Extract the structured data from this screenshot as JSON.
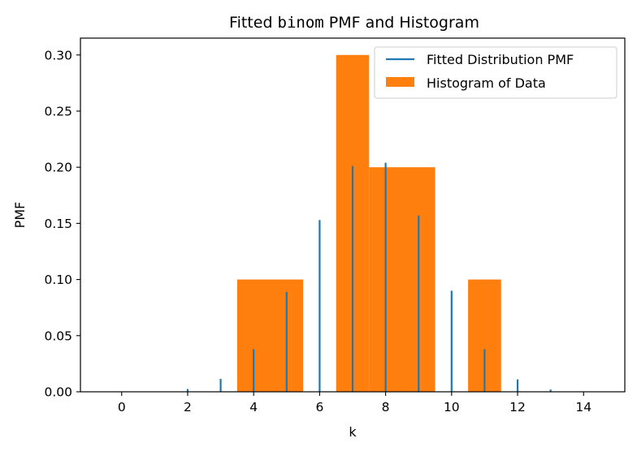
{
  "chart_data": {
    "type": "bar",
    "title_parts": [
      "Fitted ",
      "binom",
      " PMF and Histogram"
    ],
    "xlabel": "k",
    "ylabel": "PMF",
    "xlim": [
      -1.25,
      15.25
    ],
    "ylim": [
      0,
      0.315
    ],
    "xticks": [
      0,
      2,
      4,
      6,
      8,
      10,
      12,
      14
    ],
    "yticks": [
      0.0,
      0.05,
      0.1,
      0.15,
      0.2,
      0.25,
      0.3
    ],
    "grid": false,
    "legend_position": "top-right",
    "series": [
      {
        "name": "Fitted Distribution PMF",
        "type": "stem",
        "color": "#1f77b4",
        "x": [
          0,
          1,
          2,
          3,
          4,
          5,
          6,
          7,
          8,
          9,
          10,
          11,
          12,
          13,
          14
        ],
        "values": [
          2e-05,
          0.0003,
          0.0025,
          0.0115,
          0.038,
          0.089,
          0.153,
          0.201,
          0.204,
          0.157,
          0.09,
          0.038,
          0.011,
          0.002,
          0.0002
        ]
      },
      {
        "name": "Histogram of Data",
        "type": "histogram",
        "color": "#ff7f0e",
        "bins": [
          {
            "start": 3.5,
            "end": 5.5,
            "value": 0.1
          },
          {
            "start": 6.5,
            "end": 7.5,
            "value": 0.3
          },
          {
            "start": 7.5,
            "end": 9.5,
            "value": 0.2
          },
          {
            "start": 10.5,
            "end": 11.5,
            "value": 0.1
          }
        ]
      }
    ]
  }
}
